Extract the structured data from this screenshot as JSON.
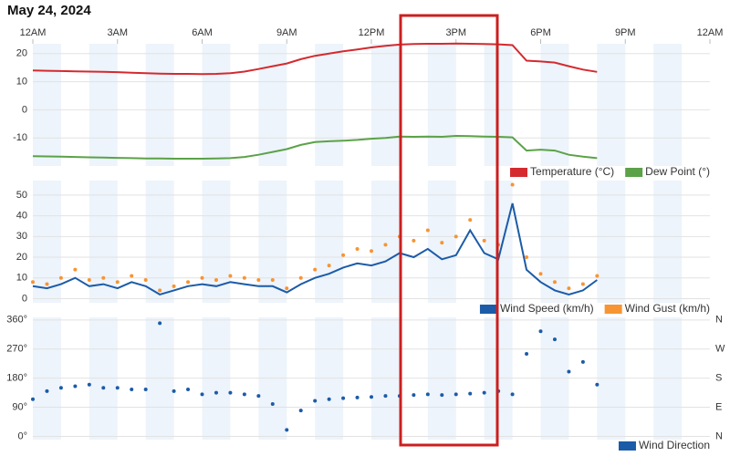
{
  "chart_data": [
    {
      "type": "line",
      "title": "May 24, 2024",
      "x": [
        0,
        0.5,
        1,
        1.5,
        2,
        2.5,
        3,
        3.5,
        4,
        4.5,
        5,
        5.5,
        6,
        6.5,
        7,
        7.5,
        8,
        8.5,
        9,
        9.5,
        10,
        10.5,
        11,
        11.5,
        12,
        12.5,
        13,
        13.5,
        14,
        14.5,
        15,
        15.5,
        16,
        16.5,
        17,
        17.5,
        18,
        18.5,
        19,
        19.5,
        20
      ],
      "xlim": [
        0,
        24
      ],
      "xticks": [
        {
          "value": 0,
          "label": "12AM"
        },
        {
          "value": 3,
          "label": "3AM"
        },
        {
          "value": 6,
          "label": "6AM"
        },
        {
          "value": 9,
          "label": "9AM"
        },
        {
          "value": 12,
          "label": "12PM"
        },
        {
          "value": 15,
          "label": "3PM"
        },
        {
          "value": 18,
          "label": "6PM"
        },
        {
          "value": 21,
          "label": "9PM"
        },
        {
          "value": 24,
          "label": "12AM"
        }
      ],
      "ylim": [
        -20,
        23.5
      ],
      "yticks": [
        -10,
        0,
        10,
        20
      ],
      "grid": true,
      "legend": "bottom-right",
      "series": [
        {
          "name": "Temperature (°C)",
          "color": "#d42a2f",
          "values": [
            14.0,
            13.9,
            13.8,
            13.7,
            13.6,
            13.5,
            13.4,
            13.2,
            13.0,
            12.9,
            12.8,
            12.8,
            12.7,
            12.8,
            13.0,
            13.6,
            14.5,
            15.5,
            16.5,
            18.0,
            19.2,
            20.0,
            20.8,
            21.5,
            22.2,
            22.8,
            23.2,
            23.4,
            23.5,
            23.5,
            23.6,
            23.5,
            23.4,
            23.3,
            23.0,
            17.5,
            17.2,
            16.8,
            15.5,
            14.3,
            13.5
          ]
        },
        {
          "name": "Dew Point (°)",
          "color": "#5ba248",
          "values": [
            -16.5,
            -16.6,
            -16.7,
            -16.8,
            -16.9,
            -17.0,
            -17.1,
            -17.2,
            -17.3,
            -17.3,
            -17.4,
            -17.4,
            -17.4,
            -17.3,
            -17.2,
            -16.8,
            -16.0,
            -15.0,
            -14.0,
            -12.5,
            -11.5,
            -11.2,
            -11.0,
            -10.7,
            -10.3,
            -10.0,
            -9.5,
            -9.6,
            -9.5,
            -9.6,
            -9.3,
            -9.4,
            -9.5,
            -9.6,
            -9.8,
            -14.5,
            -14.2,
            -14.5,
            -16.0,
            -16.7,
            -17.2
          ]
        }
      ]
    },
    {
      "type": "line",
      "x": [
        0,
        0.5,
        1,
        1.5,
        2,
        2.5,
        3,
        3.5,
        4,
        4.5,
        5,
        5.5,
        6,
        6.5,
        7,
        7.5,
        8,
        8.5,
        9,
        9.5,
        10,
        10.5,
        11,
        11.5,
        12,
        12.5,
        13,
        13.5,
        14,
        14.5,
        15,
        15.5,
        16,
        16.5,
        17,
        17.5,
        18,
        18.5,
        19,
        19.5,
        20
      ],
      "xlim": [
        0,
        24
      ],
      "ylim": [
        -2,
        57
      ],
      "yticks": [
        0,
        10,
        20,
        30,
        40,
        50
      ],
      "grid": true,
      "legend": "bottom-right",
      "series": [
        {
          "name": "Wind Speed (km/h)",
          "color": "#1c5ba8",
          "type": "line",
          "values": [
            6,
            5,
            7,
            10,
            6,
            7,
            5,
            8,
            6,
            2,
            4,
            6,
            7,
            6,
            8,
            7,
            6,
            6,
            3,
            7,
            10,
            12,
            15,
            17,
            16,
            18,
            22,
            20,
            24,
            19,
            21,
            33,
            22,
            19,
            46,
            14,
            8,
            4,
            2,
            4,
            9
          ]
        },
        {
          "name": "Wind Gust (km/h)",
          "color": "#f79433",
          "type": "scatter",
          "values": [
            8,
            7,
            10,
            14,
            9,
            10,
            8,
            11,
            9,
            4,
            6,
            8,
            10,
            9,
            11,
            10,
            9,
            9,
            5,
            10,
            14,
            16,
            21,
            24,
            23,
            26,
            30,
            28,
            33,
            27,
            30,
            38,
            28,
            26,
            55,
            20,
            12,
            8,
            5,
            7,
            11
          ]
        }
      ]
    },
    {
      "type": "scatter",
      "x": [
        0,
        0.5,
        1,
        1.5,
        2,
        2.5,
        3,
        3.5,
        4,
        4.5,
        5,
        5.5,
        6,
        6.5,
        7,
        7.5,
        8,
        8.5,
        9,
        9.5,
        10,
        10.5,
        11,
        11.5,
        12,
        12.5,
        13,
        13.5,
        14,
        14.5,
        15,
        15.5,
        16,
        16.5,
        17,
        17.5,
        18,
        18.5,
        19,
        19.5,
        20
      ],
      "xlim": [
        0,
        24
      ],
      "ylim": [
        -10,
        368
      ],
      "yticks": [
        {
          "value": 0,
          "label": "0°"
        },
        {
          "value": 90,
          "label": "90°"
        },
        {
          "value": 180,
          "label": "180°"
        },
        {
          "value": 270,
          "label": "270°"
        },
        {
          "value": 360,
          "label": "360°"
        }
      ],
      "y2lim": [
        -10,
        368
      ],
      "y2ticks": [
        {
          "value": 0,
          "label": "N"
        },
        {
          "value": 90,
          "label": "E"
        },
        {
          "value": 180,
          "label": "S"
        },
        {
          "value": 270,
          "label": "W"
        },
        {
          "value": 360,
          "label": "N"
        }
      ],
      "grid": true,
      "legend": "bottom-right",
      "series": [
        {
          "name": "Wind Direction",
          "color": "#1c5ba8",
          "values": [
            115,
            140,
            150,
            155,
            160,
            150,
            150,
            145,
            145,
            350,
            140,
            145,
            130,
            135,
            135,
            130,
            125,
            100,
            20,
            80,
            110,
            115,
            118,
            120,
            122,
            125,
            125,
            128,
            130,
            128,
            130,
            132,
            135,
            140,
            130,
            255,
            325,
            300,
            200,
            230,
            160
          ]
        }
      ]
    }
  ]
}
